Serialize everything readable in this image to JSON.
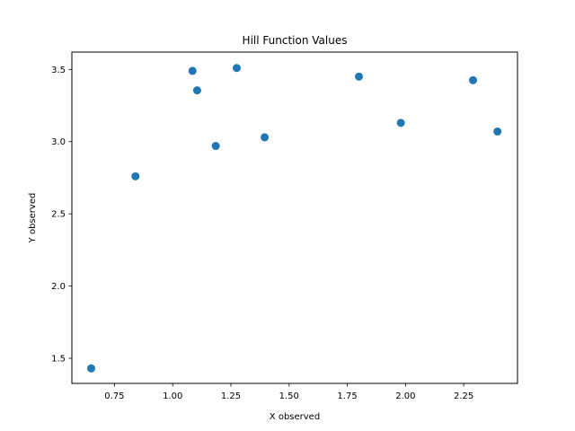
{
  "chart_data": {
    "type": "scatter",
    "title": "Hill Function Values",
    "xlabel": "X observed",
    "ylabel": "Y observed",
    "xlim": [
      0.567,
      2.481
    ],
    "ylim": [
      1.326,
      3.62
    ],
    "xticks": [
      0.75,
      1.0,
      1.25,
      1.5,
      1.75,
      2.0,
      2.25
    ],
    "xtick_labels": [
      "0.75",
      "1.00",
      "1.25",
      "1.50",
      "1.75",
      "2.00",
      "2.25"
    ],
    "yticks": [
      1.5,
      2.0,
      2.5,
      3.0,
      3.5
    ],
    "ytick_labels": [
      "1.5",
      "2.0",
      "2.5",
      "3.0",
      "3.5"
    ],
    "grid": false,
    "legend": false,
    "color": "#1f77b4",
    "points": [
      {
        "x": 0.65,
        "y": 1.43
      },
      {
        "x": 0.84,
        "y": 2.76
      },
      {
        "x": 1.085,
        "y": 3.49
      },
      {
        "x": 1.105,
        "y": 3.355
      },
      {
        "x": 1.185,
        "y": 2.97
      },
      {
        "x": 1.275,
        "y": 3.51
      },
      {
        "x": 1.395,
        "y": 3.03
      },
      {
        "x": 1.8,
        "y": 3.45
      },
      {
        "x": 1.98,
        "y": 3.13
      },
      {
        "x": 2.29,
        "y": 3.425
      },
      {
        "x": 2.395,
        "y": 3.07
      }
    ]
  }
}
